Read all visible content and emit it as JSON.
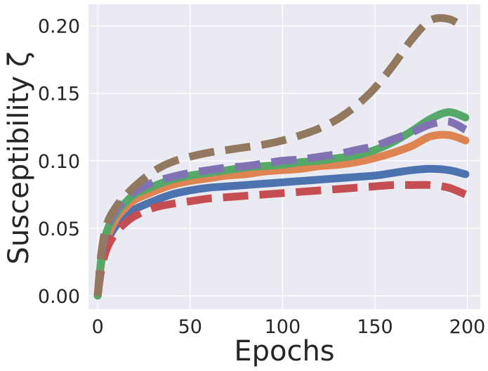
{
  "chart_data": {
    "type": "line",
    "title": "",
    "xlabel": "Epochs",
    "ylabel": "Susceptibility ζ",
    "xlim": [
      -5,
      207
    ],
    "ylim": [
      -0.01,
      0.216
    ],
    "xticks": [
      0,
      50,
      100,
      150,
      200
    ],
    "xtick_labels": [
      "0",
      "50",
      "100",
      "150",
      "200"
    ],
    "yticks": [
      0.0,
      0.05,
      0.1,
      0.15,
      0.2
    ],
    "ytick_labels": [
      "0.00",
      "0.05",
      "0.10",
      "0.15",
      "0.20"
    ],
    "grid": true,
    "legend": "none",
    "series": [
      {
        "name": "blue-solid",
        "color": "#4c72b0",
        "style": "solid",
        "x": [
          0,
          2,
          5,
          10,
          15,
          20,
          30,
          40,
          50,
          60,
          70,
          80,
          90,
          100,
          110,
          120,
          130,
          140,
          150,
          160,
          170,
          180,
          190,
          199
        ],
        "y": [
          0.0,
          0.025,
          0.04,
          0.052,
          0.059,
          0.064,
          0.07,
          0.075,
          0.078,
          0.08,
          0.081,
          0.082,
          0.083,
          0.084,
          0.085,
          0.086,
          0.087,
          0.088,
          0.089,
          0.091,
          0.093,
          0.094,
          0.093,
          0.09
        ]
      },
      {
        "name": "orange-solid",
        "color": "#dd8452",
        "style": "solid",
        "x": [
          0,
          2,
          5,
          10,
          15,
          20,
          30,
          40,
          50,
          60,
          70,
          80,
          90,
          100,
          110,
          120,
          130,
          140,
          150,
          160,
          170,
          180,
          190,
          199
        ],
        "y": [
          0.0,
          0.025,
          0.042,
          0.057,
          0.065,
          0.071,
          0.077,
          0.082,
          0.085,
          0.087,
          0.089,
          0.09,
          0.092,
          0.093,
          0.094,
          0.096,
          0.097,
          0.099,
          0.102,
          0.106,
          0.111,
          0.118,
          0.119,
          0.115
        ]
      },
      {
        "name": "green-solid",
        "color": "#55a868",
        "style": "solid",
        "x": [
          0,
          2,
          5,
          10,
          15,
          20,
          30,
          40,
          50,
          60,
          70,
          80,
          90,
          100,
          110,
          120,
          130,
          140,
          150,
          160,
          170,
          180,
          190,
          199
        ],
        "y": [
          0.0,
          0.028,
          0.048,
          0.061,
          0.069,
          0.075,
          0.081,
          0.086,
          0.089,
          0.091,
          0.093,
          0.095,
          0.096,
          0.097,
          0.099,
          0.1,
          0.102,
          0.104,
          0.108,
          0.114,
          0.122,
          0.131,
          0.136,
          0.132
        ]
      },
      {
        "name": "red-dashed",
        "color": "#c44e52",
        "style": "dashed",
        "x": [
          0,
          2,
          5,
          10,
          15,
          20,
          30,
          40,
          50,
          60,
          70,
          80,
          90,
          100,
          110,
          120,
          130,
          140,
          150,
          160,
          170,
          180,
          190,
          199
        ],
        "y": [
          0.0,
          0.02,
          0.035,
          0.047,
          0.054,
          0.059,
          0.065,
          0.068,
          0.07,
          0.072,
          0.073,
          0.074,
          0.075,
          0.076,
          0.077,
          0.078,
          0.079,
          0.08,
          0.081,
          0.082,
          0.082,
          0.082,
          0.08,
          0.075
        ]
      },
      {
        "name": "purple-dashed",
        "color": "#8172b3",
        "style": "dashed",
        "x": [
          0,
          2,
          5,
          10,
          15,
          20,
          30,
          40,
          50,
          60,
          70,
          80,
          90,
          100,
          110,
          120,
          130,
          140,
          150,
          160,
          170,
          180,
          190,
          199
        ],
        "y": [
          0.0,
          0.03,
          0.05,
          0.063,
          0.071,
          0.077,
          0.084,
          0.088,
          0.091,
          0.093,
          0.095,
          0.096,
          0.098,
          0.1,
          0.101,
          0.103,
          0.105,
          0.108,
          0.111,
          0.116,
          0.121,
          0.127,
          0.129,
          0.123
        ]
      },
      {
        "name": "brown-dashed",
        "color": "#937860",
        "style": "dashed",
        "x": [
          0,
          2,
          5,
          10,
          15,
          20,
          30,
          40,
          50,
          60,
          70,
          80,
          90,
          100,
          110,
          120,
          130,
          140,
          150,
          160,
          170,
          180,
          190,
          199
        ],
        "y": [
          0.0,
          0.032,
          0.053,
          0.066,
          0.074,
          0.081,
          0.092,
          0.099,
          0.103,
          0.106,
          0.108,
          0.11,
          0.112,
          0.115,
          0.119,
          0.124,
          0.131,
          0.141,
          0.154,
          0.171,
          0.19,
          0.204,
          0.205,
          0.198
        ]
      }
    ]
  }
}
